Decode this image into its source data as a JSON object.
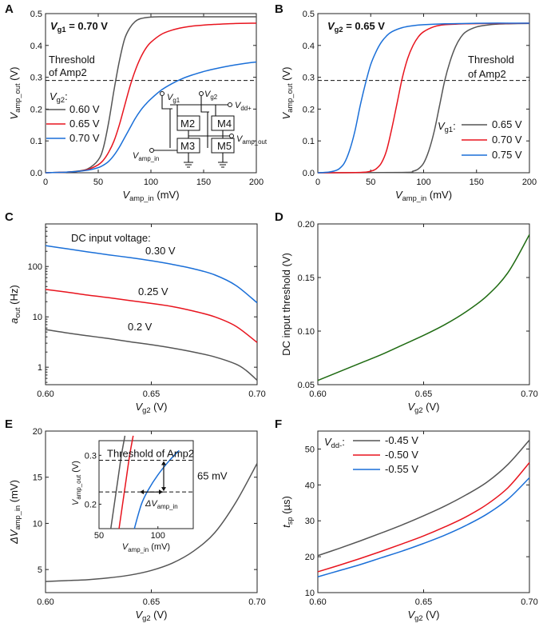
{
  "figure": {
    "panels": [
      "A",
      "B",
      "C",
      "D",
      "E",
      "F"
    ]
  },
  "chart_data": [
    {
      "id": "A",
      "type": "line",
      "title": "V",
      "title_sub": "g1",
      "title_value": " = 0.70 V",
      "xlabel": "V",
      "xlabel_sub": "amp_in",
      "xlabel_unit": " (mV)",
      "ylabel": "V",
      "ylabel_sub": "amp_out",
      "ylabel_unit": " (V)",
      "xlim": [
        0,
        200
      ],
      "ylim": [
        0,
        0.5
      ],
      "xticks": [
        0,
        50,
        100,
        150,
        200
      ],
      "yticks": [
        0.0,
        0.1,
        0.2,
        0.3,
        0.4,
        0.5
      ],
      "xtick_labels": [
        "0",
        "50",
        "100",
        "150",
        "200"
      ],
      "ytick_labels": [
        "0.0",
        "0.1",
        "0.2",
        "0.3",
        "0.4",
        "0.5"
      ],
      "threshold": 0.29,
      "threshold_label_1": "Threshold",
      "threshold_label_2": "of Amp2",
      "legend_title": "V",
      "legend_title_sub": "g2",
      "legend_title_suffix": ":",
      "series": [
        {
          "name": "0.60 V",
          "color": "#555555",
          "x": [
            0,
            10,
            20,
            30,
            40,
            50,
            55,
            60,
            65,
            70,
            75,
            80,
            85,
            90,
            100,
            110,
            120,
            140,
            160,
            180,
            200
          ],
          "y": [
            0,
            0.001,
            0.002,
            0.005,
            0.012,
            0.04,
            0.08,
            0.16,
            0.26,
            0.35,
            0.42,
            0.455,
            0.475,
            0.484,
            0.489,
            0.49,
            0.49,
            0.49,
            0.49,
            0.49,
            0.49
          ]
        },
        {
          "name": "0.65 V",
          "color": "#e8141e",
          "x": [
            0,
            10,
            20,
            30,
            40,
            50,
            55,
            60,
            65,
            70,
            75,
            80,
            85,
            90,
            95,
            100,
            110,
            120,
            130,
            140,
            150,
            160,
            180,
            200
          ],
          "y": [
            0,
            0.001,
            0.002,
            0.004,
            0.01,
            0.025,
            0.04,
            0.065,
            0.1,
            0.15,
            0.21,
            0.27,
            0.32,
            0.36,
            0.39,
            0.41,
            0.435,
            0.448,
            0.456,
            0.461,
            0.464,
            0.466,
            0.469,
            0.47
          ]
        },
        {
          "name": "0.70 V",
          "color": "#1a6fd8",
          "x": [
            0,
            10,
            20,
            30,
            40,
            50,
            55,
            60,
            65,
            70,
            75,
            80,
            85,
            90,
            95,
            100,
            110,
            120,
            130,
            140,
            150,
            160,
            170,
            180,
            190,
            200
          ],
          "y": [
            0,
            0.001,
            0.002,
            0.004,
            0.008,
            0.016,
            0.024,
            0.036,
            0.055,
            0.08,
            0.11,
            0.14,
            0.17,
            0.195,
            0.215,
            0.232,
            0.26,
            0.28,
            0.296,
            0.308,
            0.318,
            0.326,
            0.333,
            0.339,
            0.344,
            0.348
          ]
        }
      ],
      "inset_circuit": {
        "labels": [
          "V",
          "g1",
          "V",
          "g2",
          "V",
          "dd+",
          "M2",
          "M4",
          "M3",
          "M5",
          "V",
          "amp_in",
          "V",
          "amp_out"
        ]
      }
    },
    {
      "id": "B",
      "type": "line",
      "title": "V",
      "title_sub": "g2",
      "title_value": " = 0.65 V",
      "xlabel": "V",
      "xlabel_sub": "amp_in",
      "xlabel_unit": " (mV)",
      "ylabel": "V",
      "ylabel_sub": "amp_out",
      "ylabel_unit": " (V)",
      "xlim": [
        0,
        200
      ],
      "ylim": [
        0,
        0.5
      ],
      "xticks": [
        0,
        50,
        100,
        150,
        200
      ],
      "yticks": [
        0.0,
        0.1,
        0.2,
        0.3,
        0.4,
        0.5
      ],
      "xtick_labels": [
        "0",
        "50",
        "100",
        "150",
        "200"
      ],
      "ytick_labels": [
        "0.0",
        "0.1",
        "0.2",
        "0.3",
        "0.4",
        "0.5"
      ],
      "threshold": 0.29,
      "threshold_label_1": "Threshold",
      "threshold_label_2": "of Amp2",
      "legend_title": "V",
      "legend_title_sub": "g1",
      "legend_title_suffix": ":",
      "series": [
        {
          "name": "0.65 V",
          "color": "#555555",
          "x": [
            0,
            80,
            90,
            95,
            100,
            105,
            110,
            115,
            120,
            125,
            130,
            135,
            140,
            150,
            160,
            170,
            180,
            200
          ],
          "y": [
            0,
            0.001,
            0.005,
            0.012,
            0.03,
            0.07,
            0.13,
            0.21,
            0.29,
            0.35,
            0.395,
            0.425,
            0.443,
            0.458,
            0.464,
            0.467,
            0.468,
            0.469
          ]
        },
        {
          "name": "0.70 V",
          "color": "#e8141e",
          "x": [
            0,
            40,
            50,
            55,
            60,
            65,
            70,
            75,
            80,
            85,
            90,
            95,
            100,
            110,
            120,
            140,
            160,
            180,
            200
          ],
          "y": [
            0,
            0.001,
            0.005,
            0.012,
            0.03,
            0.07,
            0.14,
            0.22,
            0.3,
            0.36,
            0.4,
            0.427,
            0.443,
            0.459,
            0.465,
            0.468,
            0.469,
            0.469,
            0.47
          ]
        },
        {
          "name": "0.75 V",
          "color": "#1a6fd8",
          "x": [
            0,
            10,
            15,
            20,
            25,
            30,
            35,
            40,
            45,
            50,
            55,
            60,
            65,
            70,
            80,
            90,
            100,
            120,
            140,
            160,
            180,
            200
          ],
          "y": [
            0,
            0.002,
            0.005,
            0.012,
            0.03,
            0.07,
            0.13,
            0.21,
            0.28,
            0.34,
            0.38,
            0.41,
            0.43,
            0.443,
            0.456,
            0.462,
            0.465,
            0.468,
            0.469,
            0.47,
            0.47,
            0.47
          ]
        }
      ]
    },
    {
      "id": "C",
      "type": "line",
      "yscale": "log",
      "xlabel": "V",
      "xlabel_sub": "g2",
      "xlabel_unit": " (V)",
      "ylabel": "a",
      "ylabel_sub": "out",
      "ylabel_unit": " (Hz)",
      "xlim": [
        0.6,
        0.7
      ],
      "ylim": [
        0.45,
        700
      ],
      "xticks": [
        0.6,
        0.65,
        0.7
      ],
      "xtick_labels": [
        "0.60",
        "0.65",
        "0.70"
      ],
      "yticks": [
        1,
        10,
        100
      ],
      "ytick_labels": [
        "1",
        "10",
        "100"
      ],
      "legend_title": "DC input voltage:",
      "series": [
        {
          "name": "0.30 V",
          "color": "#1a6fd8",
          "x": [
            0.6,
            0.61,
            0.62,
            0.63,
            0.64,
            0.65,
            0.66,
            0.67,
            0.68,
            0.69,
            0.7
          ],
          "y": [
            260,
            225,
            195,
            170,
            150,
            130,
            110,
            90,
            68,
            42,
            19
          ]
        },
        {
          "name": "0.25 V",
          "color": "#e8141e",
          "x": [
            0.6,
            0.61,
            0.62,
            0.63,
            0.64,
            0.65,
            0.66,
            0.67,
            0.68,
            0.69,
            0.7
          ],
          "y": [
            35,
            31,
            27,
            24,
            21,
            18.5,
            16,
            13,
            10,
            6.5,
            3.1
          ]
        },
        {
          "name": "0.2 V",
          "color": "#555555",
          "x": [
            0.6,
            0.61,
            0.62,
            0.63,
            0.64,
            0.65,
            0.66,
            0.67,
            0.68,
            0.69,
            0.695,
            0.7
          ],
          "y": [
            5.6,
            4.8,
            4.2,
            3.7,
            3.2,
            2.8,
            2.4,
            2.0,
            1.6,
            1.15,
            0.85,
            0.55
          ]
        }
      ]
    },
    {
      "id": "D",
      "type": "line",
      "xlabel": "V",
      "xlabel_sub": "g2",
      "xlabel_unit": " (V)",
      "ylabel": "DC input threshold (V)",
      "xlim": [
        0.6,
        0.7
      ],
      "ylim": [
        0.05,
        0.2
      ],
      "xticks": [
        0.6,
        0.65,
        0.7
      ],
      "xtick_labels": [
        "0.60",
        "0.65",
        "0.70"
      ],
      "yticks": [
        0.05,
        0.1,
        0.15,
        0.2
      ],
      "ytick_labels": [
        "0.05",
        "0.10",
        "0.15",
        "0.20"
      ],
      "series": [
        {
          "name": "threshold",
          "color": "#1f6b12",
          "x": [
            0.6,
            0.61,
            0.62,
            0.63,
            0.64,
            0.65,
            0.66,
            0.67,
            0.68,
            0.69,
            0.7
          ],
          "y": [
            0.054,
            0.062,
            0.07,
            0.078,
            0.087,
            0.096,
            0.106,
            0.118,
            0.133,
            0.155,
            0.19
          ]
        }
      ]
    },
    {
      "id": "E",
      "type": "line",
      "xlabel": "V",
      "xlabel_sub": "g2",
      "xlabel_unit": " (V)",
      "ylabel": "ΔV",
      "ylabel_sub": "amp_in",
      "ylabel_unit": " (mV)",
      "xlim": [
        0.6,
        0.7
      ],
      "ylim": [
        2.5,
        20
      ],
      "xticks": [
        0.6,
        0.65,
        0.7
      ],
      "xtick_labels": [
        "0.60",
        "0.65",
        "0.70"
      ],
      "yticks": [
        5,
        10,
        15,
        20
      ],
      "ytick_labels": [
        "5",
        "10",
        "15",
        "20"
      ],
      "series": [
        {
          "name": "delta",
          "color": "#555555",
          "x": [
            0.6,
            0.61,
            0.62,
            0.63,
            0.64,
            0.65,
            0.66,
            0.67,
            0.68,
            0.69,
            0.7
          ],
          "y": [
            3.7,
            3.8,
            3.9,
            4.1,
            4.4,
            4.9,
            5.7,
            7.0,
            9.0,
            12.3,
            16.5
          ]
        }
      ],
      "inset": {
        "xlabel": "V",
        "xlabel_sub": "amp_in",
        "xlabel_unit": " (mV)",
        "ylabel": "V",
        "ylabel_sub": "amp_out",
        "ylabel_unit": " (V)",
        "xlim": [
          50,
          130
        ],
        "ylim": [
          0.15,
          0.33
        ],
        "xticks": [
          50,
          100
        ],
        "xtick_labels": [
          "50",
          "100"
        ],
        "yticks": [
          0.2,
          0.3
        ],
        "ytick_labels": [
          "0.2",
          "0.3"
        ],
        "threshold_label": "Threshold of Amp2",
        "delta_label": "65 mV",
        "dv_label": "ΔV",
        "dv_label_sub": "amp_in",
        "upper_level": 0.29,
        "lower_level": 0.225,
        "series": [
          {
            "color": "#555555",
            "x": [
              60,
              63,
              66,
              69,
              72
            ],
            "y": [
              0.15,
              0.2,
              0.25,
              0.3,
              0.34
            ]
          },
          {
            "color": "#e8141e",
            "x": [
              67,
              70,
              73,
              76,
              79
            ],
            "y": [
              0.15,
              0.2,
              0.25,
              0.3,
              0.34
            ]
          },
          {
            "color": "#1a6fd8",
            "x": [
              80,
              86,
              92,
              100,
              110,
              118
            ],
            "y": [
              0.15,
              0.2,
              0.23,
              0.26,
              0.29,
              0.31
            ]
          }
        ]
      }
    },
    {
      "id": "F",
      "type": "line",
      "xlabel": "V",
      "xlabel_sub": "g2",
      "xlabel_unit": " (V)",
      "ylabel": "t",
      "ylabel_sub": "sp",
      "ylabel_unit": " (µs)",
      "xlim": [
        0.6,
        0.7
      ],
      "ylim": [
        10,
        55
      ],
      "xticks": [
        0.6,
        0.65,
        0.7
      ],
      "xtick_labels": [
        "0.60",
        "0.65",
        "0.70"
      ],
      "yticks": [
        10,
        20,
        30,
        40,
        50
      ],
      "ytick_labels": [
        "10",
        "20",
        "30",
        "40",
        "50"
      ],
      "legend_title": "V",
      "legend_title_sub": "dd-",
      "legend_title_suffix": ":",
      "series": [
        {
          "name": "-0.45 V",
          "color": "#555555",
          "x": [
            0.6,
            0.61,
            0.62,
            0.63,
            0.64,
            0.65,
            0.66,
            0.67,
            0.68,
            0.69,
            0.7
          ],
          "y": [
            20.3,
            22.3,
            24.4,
            26.6,
            28.9,
            31.4,
            34.1,
            37.2,
            40.8,
            45.8,
            52.5
          ]
        },
        {
          "name": "-0.50 V",
          "color": "#e8141e",
          "x": [
            0.6,
            0.61,
            0.62,
            0.63,
            0.64,
            0.65,
            0.66,
            0.67,
            0.68,
            0.69,
            0.7
          ],
          "y": [
            15.8,
            17.6,
            19.5,
            21.5,
            23.6,
            25.8,
            28.3,
            31.1,
            34.6,
            39.3,
            46.2
          ]
        },
        {
          "name": "-0.55 V",
          "color": "#1a6fd8",
          "x": [
            0.6,
            0.61,
            0.62,
            0.63,
            0.64,
            0.65,
            0.66,
            0.67,
            0.68,
            0.69,
            0.7
          ],
          "y": [
            14.4,
            16.1,
            17.8,
            19.7,
            21.6,
            23.7,
            26.0,
            28.7,
            31.9,
            36.1,
            42.0
          ]
        }
      ]
    }
  ]
}
